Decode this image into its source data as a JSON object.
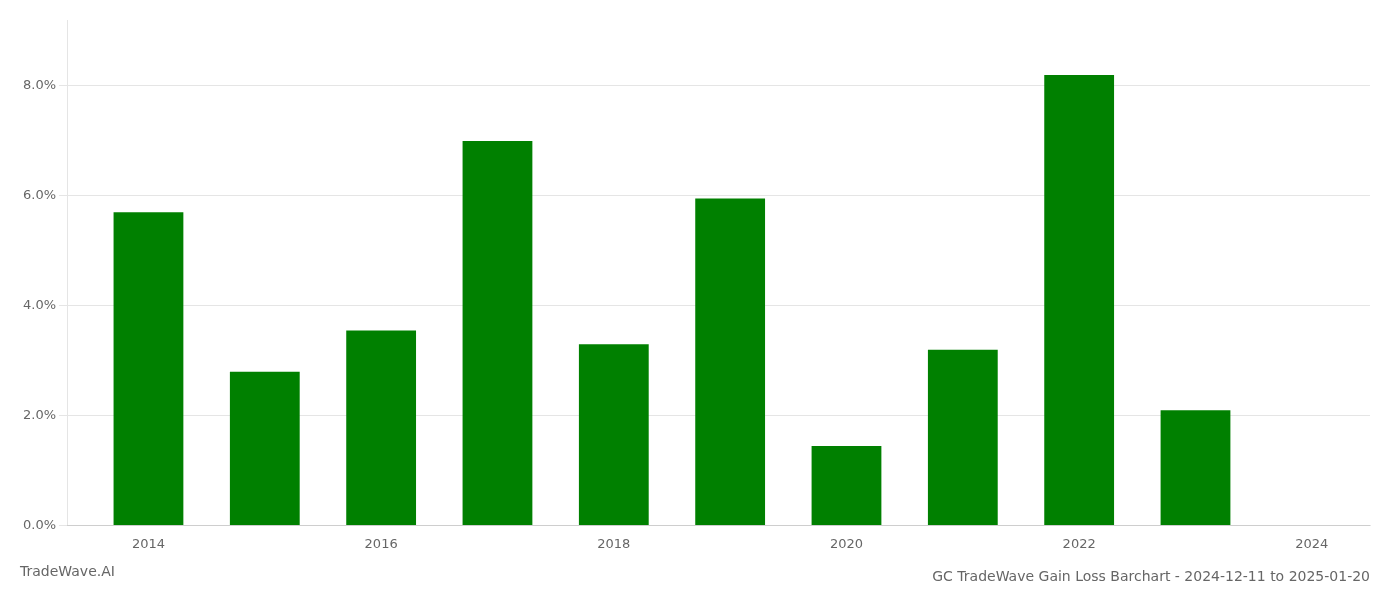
{
  "chart_data": {
    "type": "bar",
    "title": "GC TradeWave Gain Loss Barchart - 2024-12-11 to 2025-01-20",
    "annotations": [
      "TradeWave.AI"
    ],
    "x": [
      2014,
      2015,
      2016,
      2017,
      2018,
      2019,
      2020,
      2021,
      2022,
      2023
    ],
    "values": [
      0.057,
      0.028,
      0.0355,
      0.07,
      0.033,
      0.0595,
      0.0145,
      0.032,
      0.082,
      0.021
    ],
    "color": "#008000",
    "xlim": [
      2013.3,
      2024.5
    ],
    "xticks": [
      2014,
      2016,
      2018,
      2020,
      2022,
      2024
    ],
    "ylim": [
      0.0,
      0.092
    ],
    "yticks": [
      {
        "value": 0.0,
        "label": "0.0%"
      },
      {
        "value": 0.02,
        "label": "2.0%"
      },
      {
        "value": 0.04,
        "label": "4.0%"
      },
      {
        "value": 0.06,
        "label": "6.0%"
      },
      {
        "value": 0.08,
        "label": "8.0%"
      }
    ],
    "grid": true
  }
}
